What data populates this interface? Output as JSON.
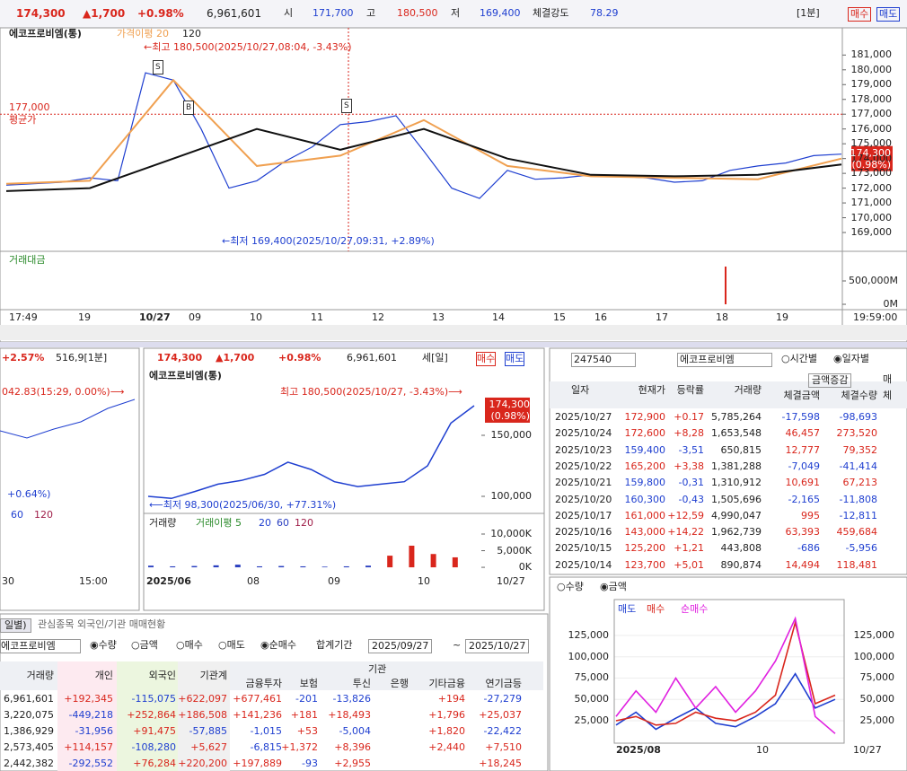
{
  "top_bar": {
    "price": "174,300",
    "change": "▲1,700",
    "rate": "+0.98%",
    "volume": "6,961,601",
    "open_label": "시",
    "open": "171,700",
    "high_label": "고",
    "high": "180,500",
    "low_label": "저",
    "low": "169,400",
    "strength_label": "체결강도",
    "strength": "78.29",
    "interval": "[1분]",
    "buy": "매수",
    "sell": "매도"
  },
  "main_chart": {
    "title": "에코프로비엠(통)",
    "high_note": "←최고 180,500(2025/10/27,08:04, -3.43%)",
    "low_note": "←최저 169,400(2025/10/27,09:31, +2.89%)",
    "avg_price": {
      "value": 177000,
      "label": "177,000"
    },
    "avg_label": "평균가",
    "current": {
      "value": 174300,
      "label": "174,300"
    },
    "current_rate": "(0.98%)",
    "markers": [
      "S",
      "B",
      "S"
    ],
    "ylim": [
      167850,
      182900
    ],
    "yticks": [
      {
        "value": 181000,
        "label": "181,000"
      },
      {
        "value": 180000,
        "label": "180,000"
      },
      {
        "value": 179000,
        "label": "179,000"
      },
      {
        "value": 178000,
        "label": "178,000"
      },
      {
        "value": 177000,
        "label": "177,000"
      },
      {
        "value": 176000,
        "label": "176,000"
      },
      {
        "value": 175000,
        "label": "175,000"
      },
      {
        "value": 174000,
        "label": "174,000"
      },
      {
        "value": 173000,
        "label": "173,000"
      },
      {
        "value": 172000,
        "label": "172,000"
      },
      {
        "value": 171000,
        "label": "171,000"
      },
      {
        "value": 170000,
        "label": "170,000"
      },
      {
        "value": 169000,
        "label": "169,000"
      }
    ],
    "price_color": "#1f3fd0",
    "price_values": [
      172200,
      172300,
      172400,
      172700,
      172500,
      179800,
      179300,
      176000,
      172000,
      172500,
      173800,
      174800,
      176300,
      176500,
      176900,
      174500,
      172000,
      171300,
      173200,
      172600,
      172700,
      172900,
      172800,
      172700,
      172400,
      172500,
      173200,
      173500,
      173700,
      174200,
      174300
    ],
    "series": [
      {
        "name": "가격이평 20",
        "color": "#f0a050",
        "values": [
          172300,
          172500,
          179300,
          173500,
          174200,
          176600,
          173500,
          172800,
          172700,
          172600,
          174000
        ]
      },
      {
        "name": "120",
        "color": "#111111",
        "values": [
          171800,
          172000,
          174000,
          176000,
          174600,
          176000,
          174000,
          172900,
          172800,
          172900,
          173600
        ]
      }
    ],
    "x_labels": [
      "17:49",
      "19",
      "10/27",
      "09",
      "10",
      "11",
      "12",
      "13",
      "14",
      "15",
      "16",
      "17",
      "18",
      "19",
      "19:59:00"
    ],
    "volume_title": "거래대금",
    "volume_ylim": [
      -115000,
      1134600
    ],
    "volume_yticks": [
      {
        "value": 500000,
        "label": "500,000M"
      },
      {
        "value": 0,
        "label": "0M"
      }
    ],
    "volume_color": "#d9261c",
    "volume_values": [
      808000
    ]
  },
  "left_panel": {
    "rate": "+2.57%",
    "info": "516,9[1분]",
    "note": "042.83(15:29, 0.00%)⟶",
    "low_note": "+0.64%)",
    "legend": [
      "60",
      "120"
    ],
    "x_labels": [
      "30",
      "15:00"
    ]
  },
  "middle_chart": {
    "price": "174,300",
    "change": "▲1,700",
    "rate": "+0.98%",
    "volume": "6,961,601",
    "interval": "세[일]",
    "buy": "매수",
    "sell": "매도",
    "title": "에코프로비엠(통)",
    "high_note": "최고 180,500(2025/10/27, -3.43%)⟶",
    "low_note": "⟵최저 98,300(2025/06/30, +77.31%)",
    "current": {
      "value": 174300,
      "label": "174,300"
    },
    "current_rate": "(0.98%)",
    "ylim": [
      87500,
      197800
    ],
    "yticks": [
      {
        "value": 150000,
        "label": "150,000"
      },
      {
        "value": 100000,
        "label": "100,000"
      }
    ],
    "price_color": "#1f3fd0",
    "price_values": [
      100000,
      98300,
      104000,
      110000,
      113000,
      118000,
      128000,
      122000,
      112000,
      108000,
      110000,
      112000,
      125000,
      160000,
      174300
    ],
    "volume_legend": [
      "거래량",
      "거래이평 5",
      "20",
      "60",
      "120"
    ],
    "volume_ylim": [
      -1600,
      12700
    ],
    "volume_yticks": [
      {
        "value": 10000,
        "label": "10,000K"
      },
      {
        "value": 5000,
        "label": "5,000K"
      },
      {
        "value": 0,
        "label": "0K"
      }
    ],
    "volume_color": "#2a3fc0",
    "volume_values": [
      500,
      300,
      400,
      600,
      800,
      300,
      400,
      300,
      200,
      300,
      500,
      3500,
      6500,
      4000,
      3000
    ],
    "x_labels": [
      "2025/06",
      "08",
      "09",
      "10",
      "10/27"
    ]
  },
  "right_table": {
    "code": "247540",
    "name": "에코프로비엠",
    "time_opt": "시간별",
    "date_opt": "일자별",
    "mode": "금액증감",
    "extra": "매",
    "columns": [
      "일자",
      "현재가",
      "등락률",
      "거래량",
      "체결금액",
      "체결수량",
      "체"
    ],
    "rows": [
      [
        "2025/10/27",
        "172,900",
        "+0.17",
        "5,785,264",
        "-17,598",
        "-98,693"
      ],
      [
        "2025/10/24",
        "172,600",
        "+8,28",
        "1,653,548",
        "46,457",
        "273,520"
      ],
      [
        "2025/10/23",
        "159,400",
        "-3,51",
        "650,815",
        "12,777",
        "79,352"
      ],
      [
        "2025/10/22",
        "165,200",
        "+3,38",
        "1,381,288",
        "-7,049",
        "-41,414"
      ],
      [
        "2025/10/21",
        "159,800",
        "-0,31",
        "1,310,912",
        "10,691",
        "67,213"
      ],
      [
        "2025/10/20",
        "160,300",
        "-0,43",
        "1,505,696",
        "-2,165",
        "-11,808"
      ],
      [
        "2025/10/17",
        "161,000",
        "+12,59",
        "4,990,047",
        "995",
        "-12,811"
      ],
      [
        "2025/10/16",
        "143,000",
        "+14,22",
        "1,962,739",
        "63,393",
        "459,684"
      ],
      [
        "2025/10/15",
        "125,200",
        "+1,21",
        "443,808",
        "-686",
        "-5,956"
      ],
      [
        "2025/10/14",
        "123,700",
        "+5,01",
        "890,874",
        "14,494",
        "118,481"
      ]
    ]
  },
  "right_chart": {
    "options": [
      "수량",
      "금액"
    ],
    "ylim": [
      -3400,
      143900
    ],
    "yticks": [
      {
        "value": 125000,
        "label": "125,000"
      },
      {
        "value": 100000,
        "label": "100,000"
      },
      {
        "value": 75000,
        "label": "75,000"
      },
      {
        "value": 50000,
        "label": "50,000"
      },
      {
        "value": 25000,
        "label": "25,000"
      }
    ],
    "series": [
      {
        "name": "매도",
        "color": "#1f3fd0",
        "values": [
          20000,
          35000,
          15000,
          28000,
          40000,
          22000,
          18000,
          30000,
          45000,
          80000,
          40000,
          50000
        ]
      },
      {
        "name": "매수",
        "color": "#d9261c",
        "values": [
          25000,
          30000,
          20000,
          22000,
          35000,
          28000,
          25000,
          35000,
          55000,
          140000,
          45000,
          55000
        ]
      },
      {
        "name": "순매수",
        "color": "#e020e0",
        "values": [
          30000,
          60000,
          35000,
          75000,
          40000,
          65000,
          35000,
          60000,
          95000,
          145000,
          30000,
          10000
        ]
      }
    ],
    "x_labels": [
      "2025/08",
      "10",
      "10/27"
    ]
  },
  "bottom_table": {
    "tabs": [
      "일별)",
      "관심종목 외국인/기관 매매현황"
    ],
    "name": "에코프로비엠",
    "options": [
      "수량",
      "금액",
      "매수",
      "매도",
      "순매수"
    ],
    "period_label": "합계기간",
    "from": "2025/09/27",
    "tilde": "~",
    "to": "2025/10/27",
    "columns": [
      "거래량",
      "개인",
      "외국인",
      "기관계"
    ],
    "group": "기관",
    "sub_columns": [
      "금융투자",
      "보험",
      "투신",
      "은행",
      "기타금융",
      "연기금등"
    ],
    "rows": [
      [
        "6,961,601",
        "+192,345",
        "-115,075",
        "+622,097",
        "+677,461",
        "-201",
        "-13,826",
        null,
        "+194",
        "-27,279"
      ],
      [
        "3,220,075",
        "-449,218",
        "+252,864",
        "+186,508",
        "+141,236",
        "+181",
        "+18,493",
        null,
        "+1,796",
        "+25,037"
      ],
      [
        "1,386,929",
        "-31,956",
        "+91,475",
        "-57,885",
        "-1,015",
        "+53",
        "-5,004",
        null,
        "+1,820",
        "-22,422"
      ],
      [
        "2,573,405",
        "+114,157",
        "-108,280",
        "+5,627",
        "-6,815",
        "+1,372",
        "+8,396",
        null,
        "+2,440",
        "+7,510"
      ],
      [
        "2,442,382",
        "-292,552",
        "+76,284",
        "+220,200",
        "+197,889",
        "-93",
        "+2,955",
        null,
        null,
        "+18,245"
      ]
    ]
  }
}
